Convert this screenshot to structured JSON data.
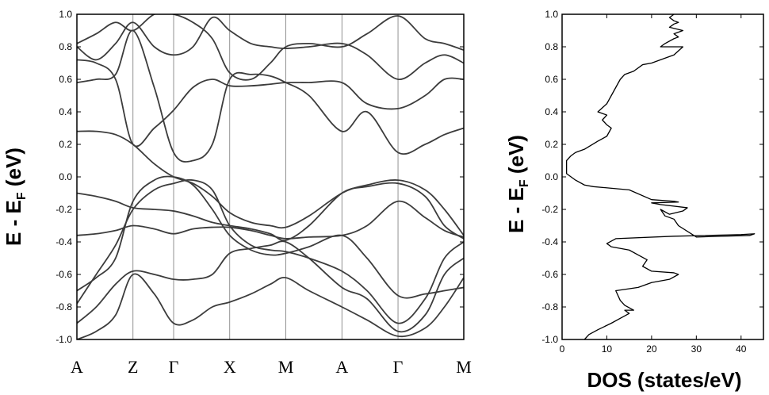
{
  "chart_data": [
    {
      "type": "line",
      "chart": "band-structure",
      "ylabel": {
        "main": "E - E",
        "sub": "F",
        "unit": " (eV)"
      },
      "ylim": [
        -1.0,
        1.0
      ],
      "yticks": [
        "1.0",
        "0.8",
        "0.6",
        "0.4",
        "0.2",
        "0.0",
        "-0.2",
        "-0.4",
        "-0.6",
        "-0.8",
        "-1.0"
      ],
      "kpoints": [
        {
          "label": "A",
          "x": 0.0
        },
        {
          "label": "Z",
          "x": 0.145
        },
        {
          "label": "Γ",
          "x": 0.25
        },
        {
          "label": "X",
          "x": 0.395
        },
        {
          "label": "M",
          "x": 0.54
        },
        {
          "label": "A",
          "x": 0.685
        },
        {
          "label": "Γ",
          "x": 0.83
        },
        {
          "label": "M",
          "x": 1.0
        }
      ],
      "grid": "vertical lines at high-symmetry points",
      "line_color": "#3c3c3c",
      "series": [
        {
          "x": [
            0.0,
            0.05,
            0.1,
            0.145,
            0.2,
            0.25,
            0.3,
            0.35,
            0.395,
            0.45,
            0.5,
            0.54,
            0.6,
            0.685,
            0.75,
            0.83,
            0.9,
            0.95,
            1.0
          ],
          "values": [
            -0.36,
            -0.35,
            -0.33,
            -0.3,
            -0.32,
            -0.35,
            -0.32,
            -0.31,
            -0.31,
            -0.33,
            -0.36,
            -0.38,
            -0.37,
            -0.36,
            -0.3,
            -0.15,
            -0.25,
            -0.33,
            -0.37
          ]
        },
        {
          "x": [
            0.0,
            0.05,
            0.1,
            0.145,
            0.2,
            0.25,
            0.3,
            0.35,
            0.395,
            0.45,
            0.5,
            0.54,
            0.6,
            0.685,
            0.75,
            0.83,
            0.9,
            0.95,
            1.0
          ],
          "values": [
            -0.1,
            -0.12,
            -0.15,
            -0.19,
            -0.2,
            -0.21,
            -0.24,
            -0.28,
            -0.3,
            -0.32,
            -0.35,
            -0.39,
            -0.3,
            -0.1,
            -0.06,
            -0.04,
            -0.12,
            -0.3,
            -0.38
          ]
        },
        {
          "x": [
            0.0,
            0.05,
            0.1,
            0.145,
            0.2,
            0.25,
            0.3,
            0.35,
            0.395,
            0.45,
            0.5,
            0.54,
            0.6,
            0.685,
            0.75,
            0.83,
            0.9,
            0.95,
            1.0
          ],
          "values": [
            0.28,
            0.28,
            0.26,
            0.2,
            0.08,
            0.0,
            -0.04,
            -0.12,
            -0.22,
            -0.28,
            -0.3,
            -0.31,
            -0.24,
            -0.1,
            -0.05,
            -0.02,
            -0.08,
            -0.2,
            -0.36
          ]
        },
        {
          "x": [
            0.0,
            0.05,
            0.1,
            0.145,
            0.2,
            0.25,
            0.3,
            0.35,
            0.395,
            0.45,
            0.5,
            0.54,
            0.6,
            0.685,
            0.75,
            0.83,
            0.9,
            0.95,
            1.0
          ],
          "values": [
            -0.7,
            -0.62,
            -0.5,
            -0.15,
            -0.02,
            0.0,
            -0.05,
            -0.2,
            -0.36,
            -0.45,
            -0.48,
            -0.47,
            -0.43,
            -0.36,
            -0.5,
            -0.73,
            -0.72,
            -0.7,
            -0.68
          ]
        },
        {
          "x": [
            0.0,
            0.05,
            0.1,
            0.145,
            0.2,
            0.25,
            0.3,
            0.35,
            0.395,
            0.45,
            0.5,
            0.54,
            0.6,
            0.685,
            0.75,
            0.83,
            0.9,
            0.95,
            1.0
          ],
          "values": [
            -0.78,
            -0.6,
            -0.42,
            -0.2,
            -0.08,
            -0.04,
            -0.02,
            -0.08,
            -0.3,
            -0.42,
            -0.45,
            -0.46,
            -0.5,
            -0.58,
            -0.7,
            -0.9,
            -0.75,
            -0.5,
            -0.4
          ]
        },
        {
          "x": [
            0.0,
            0.05,
            0.1,
            0.145,
            0.2,
            0.25,
            0.3,
            0.35,
            0.395,
            0.45,
            0.5,
            0.54,
            0.6,
            0.685,
            0.75,
            0.83,
            0.9,
            0.95,
            1.0
          ],
          "values": [
            -0.9,
            -0.8,
            -0.66,
            -0.58,
            -0.6,
            -0.63,
            -0.63,
            -0.6,
            -0.47,
            -0.44,
            -0.42,
            -0.4,
            -0.5,
            -0.68,
            -0.75,
            -0.95,
            -0.85,
            -0.6,
            -0.5
          ]
        },
        {
          "x": [
            0.0,
            0.05,
            0.1,
            0.145,
            0.2,
            0.25,
            0.3,
            0.35,
            0.395,
            0.45,
            0.5,
            0.54,
            0.6,
            0.685,
            0.75,
            0.83,
            0.9,
            0.95,
            1.0
          ],
          "values": [
            -1.0,
            -0.95,
            -0.85,
            -0.6,
            -0.72,
            -0.9,
            -0.88,
            -0.8,
            -0.77,
            -0.72,
            -0.66,
            -0.62,
            -0.7,
            -0.8,
            -0.88,
            -0.98,
            -0.93,
            -0.8,
            -0.62
          ]
        },
        {
          "x": [
            0.0,
            0.05,
            0.1,
            0.145,
            0.2,
            0.25,
            0.3,
            0.35,
            0.395,
            0.45,
            0.5,
            0.54,
            0.6,
            0.685,
            0.75,
            0.83,
            0.9,
            0.95,
            1.0
          ],
          "values": [
            0.58,
            0.6,
            0.63,
            0.9,
            0.55,
            0.15,
            0.1,
            0.2,
            0.6,
            0.63,
            0.62,
            0.58,
            0.5,
            0.28,
            0.4,
            0.15,
            0.2,
            0.26,
            0.3
          ]
        },
        {
          "x": [
            0.0,
            0.05,
            0.1,
            0.145,
            0.2,
            0.25,
            0.3,
            0.35,
            0.395,
            0.45,
            0.5,
            0.54,
            0.6,
            0.685,
            0.75,
            0.83,
            0.9,
            0.95,
            1.0
          ],
          "values": [
            0.72,
            0.7,
            0.6,
            0.2,
            0.3,
            0.41,
            0.55,
            0.6,
            0.56,
            0.56,
            0.57,
            0.58,
            0.58,
            0.58,
            0.45,
            0.42,
            0.5,
            0.6,
            0.6
          ]
        },
        {
          "x": [
            0.0,
            0.05,
            0.1,
            0.145,
            0.2,
            0.25,
            0.3,
            0.35,
            0.395,
            0.45,
            0.5,
            0.54,
            0.6,
            0.685,
            0.75,
            0.83,
            0.9,
            0.95,
            1.0
          ],
          "values": [
            0.8,
            0.72,
            0.82,
            0.95,
            0.8,
            0.75,
            0.8,
            0.98,
            0.9,
            0.82,
            0.8,
            0.79,
            0.8,
            0.82,
            0.75,
            0.6,
            0.7,
            0.75,
            0.7
          ]
        },
        {
          "x": [
            0.0,
            0.05,
            0.1,
            0.145,
            0.2,
            0.25,
            0.3,
            0.35,
            0.395,
            0.45,
            0.5,
            0.54,
            0.6,
            0.685,
            0.75,
            0.83,
            0.9,
            0.95,
            1.0
          ],
          "values": [
            0.82,
            0.88,
            0.95,
            0.9,
            1.0,
            1.0,
            0.95,
            0.85,
            0.64,
            0.6,
            0.7,
            0.8,
            0.82,
            0.8,
            0.88,
            0.99,
            0.85,
            0.82,
            0.78
          ]
        }
      ]
    },
    {
      "type": "line",
      "chart": "density-of-states",
      "xlabel": "DOS (states/eV)",
      "ylabel": {
        "main": "E - E",
        "sub": "F",
        "unit": " (eV)"
      },
      "xlim": [
        0,
        45
      ],
      "ylim": [
        -1.0,
        1.0
      ],
      "xticks": [
        "0",
        "10",
        "20",
        "30",
        "40"
      ],
      "yticks": [
        "1.0",
        "0.8",
        "0.6",
        "0.4",
        "0.2",
        "0.0",
        "-0.2",
        "-0.4",
        "-0.6",
        "-0.8",
        "-1.0"
      ],
      "line_color": "#000000",
      "series": [
        {
          "x": [
            5,
            6,
            8,
            11,
            13,
            15,
            14,
            16,
            14,
            13,
            12,
            17,
            20,
            24,
            26,
            25,
            20,
            18,
            19,
            17,
            15,
            11,
            10,
            12,
            25,
            40,
            43,
            42,
            30,
            26,
            25,
            23,
            22,
            24,
            27,
            28,
            22,
            20,
            26,
            25,
            20,
            15,
            7,
            5,
            3,
            2,
            1,
            1,
            1,
            1,
            2,
            3,
            5,
            8,
            10,
            11,
            10,
            9,
            10,
            8,
            10,
            11,
            12,
            13,
            14,
            16,
            18,
            20,
            22,
            25,
            27,
            22,
            23,
            25,
            26,
            25,
            27,
            24,
            25,
            26,
            25,
            24,
            25
          ],
          "values": [
            -1.0,
            -0.97,
            -0.94,
            -0.9,
            -0.87,
            -0.84,
            -0.82,
            -0.82,
            -0.79,
            -0.76,
            -0.7,
            -0.68,
            -0.65,
            -0.63,
            -0.6,
            -0.59,
            -0.58,
            -0.55,
            -0.51,
            -0.48,
            -0.45,
            -0.43,
            -0.41,
            -0.38,
            -0.365,
            -0.355,
            -0.35,
            -0.36,
            -0.37,
            -0.3,
            -0.26,
            -0.24,
            -0.2,
            -0.23,
            -0.21,
            -0.19,
            -0.17,
            -0.16,
            -0.155,
            -0.15,
            -0.14,
            -0.08,
            -0.06,
            -0.05,
            -0.02,
            0.0,
            0.02,
            0.04,
            0.08,
            0.1,
            0.13,
            0.15,
            0.17,
            0.22,
            0.25,
            0.3,
            0.32,
            0.35,
            0.38,
            0.4,
            0.45,
            0.5,
            0.55,
            0.6,
            0.63,
            0.65,
            0.69,
            0.7,
            0.72,
            0.75,
            0.8,
            0.8,
            0.82,
            0.85,
            0.86,
            0.88,
            0.9,
            0.92,
            0.94,
            0.95,
            0.96,
            0.98,
            1.0
          ]
        }
      ]
    }
  ]
}
